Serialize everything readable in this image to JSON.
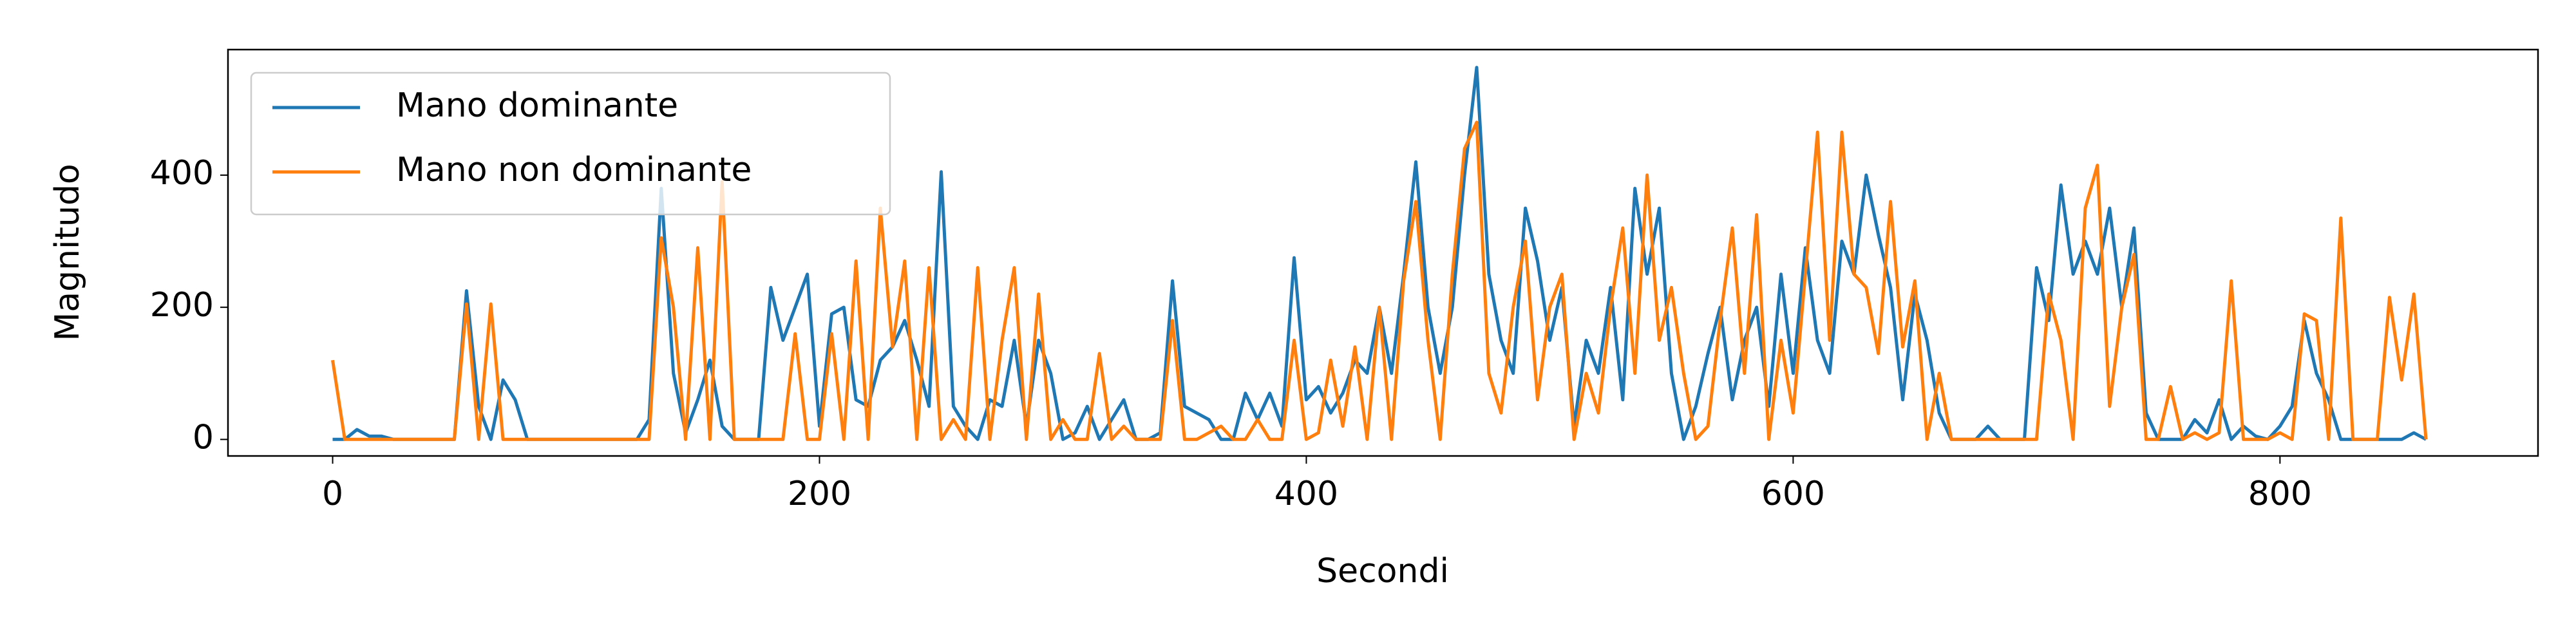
{
  "chart_data": {
    "type": "line",
    "xlabel": "Secondi",
    "ylabel": "Magnitudo",
    "x": [
      0,
      5,
      10,
      15,
      20,
      25,
      30,
      35,
      40,
      45,
      50,
      55,
      60,
      65,
      70,
      75,
      80,
      85,
      90,
      95,
      100,
      105,
      110,
      115,
      120,
      125,
      130,
      135,
      140,
      145,
      150,
      155,
      160,
      165,
      170,
      175,
      180,
      185,
      190,
      195,
      200,
      205,
      210,
      215,
      220,
      225,
      230,
      235,
      240,
      245,
      250,
      255,
      260,
      265,
      270,
      275,
      280,
      285,
      290,
      295,
      300,
      305,
      310,
      315,
      320,
      325,
      330,
      335,
      340,
      345,
      350,
      355,
      360,
      365,
      370,
      375,
      380,
      385,
      390,
      395,
      400,
      405,
      410,
      415,
      420,
      425,
      430,
      435,
      440,
      445,
      450,
      455,
      460,
      465,
      470,
      475,
      480,
      485,
      490,
      495,
      500,
      505,
      510,
      515,
      520,
      525,
      530,
      535,
      540,
      545,
      550,
      555,
      560,
      565,
      570,
      575,
      580,
      585,
      590,
      595,
      600,
      605,
      610,
      615,
      620,
      625,
      630,
      635,
      640,
      645,
      650,
      655,
      660,
      665,
      670,
      675,
      680,
      685,
      690,
      695,
      700,
      705,
      710,
      715,
      720,
      725,
      730,
      735,
      740,
      745,
      750,
      755,
      760,
      765,
      770,
      775,
      780,
      785,
      790,
      795,
      800,
      805,
      810,
      815,
      820,
      825,
      830,
      835,
      840,
      845,
      850,
      855,
      860
    ],
    "series": [
      {
        "name": "Mano dominante",
        "color": "#1f77b4",
        "values": [
          0,
          0,
          15,
          5,
          5,
          0,
          0,
          0,
          0,
          0,
          0,
          225,
          50,
          0,
          90,
          60,
          0,
          0,
          0,
          0,
          0,
          0,
          0,
          0,
          0,
          0,
          30,
          380,
          100,
          10,
          60,
          120,
          20,
          0,
          0,
          0,
          230,
          150,
          200,
          250,
          20,
          190,
          200,
          60,
          50,
          120,
          140,
          180,
          120,
          50,
          405,
          50,
          20,
          0,
          60,
          50,
          150,
          20,
          150,
          100,
          0,
          10,
          50,
          0,
          30,
          60,
          0,
          0,
          10,
          240,
          50,
          40,
          30,
          0,
          0,
          70,
          30,
          70,
          20,
          275,
          60,
          80,
          40,
          70,
          120,
          100,
          200,
          100,
          250,
          420,
          200,
          100,
          200,
          400,
          563,
          250,
          150,
          100,
          350,
          270,
          150,
          230,
          20,
          150,
          100,
          230,
          60,
          380,
          250,
          350,
          100,
          0,
          50,
          130,
          200,
          60,
          150,
          200,
          50,
          250,
          100,
          290,
          150,
          100,
          300,
          250,
          400,
          310,
          230,
          60,
          220,
          150,
          40,
          0,
          0,
          0,
          20,
          0,
          0,
          0,
          260,
          180,
          385,
          250,
          300,
          250,
          350,
          200,
          320,
          40,
          0,
          0,
          0,
          30,
          10,
          60,
          0,
          20,
          5,
          0,
          20,
          50,
          180,
          100,
          60,
          0,
          0,
          0,
          0,
          0,
          0,
          10,
          0
        ]
      },
      {
        "name": "Mano non dominante",
        "color": "#ff7f0e",
        "values": [
          120,
          0,
          0,
          0,
          0,
          0,
          0,
          0,
          0,
          0,
          0,
          205,
          0,
          205,
          0,
          0,
          0,
          0,
          0,
          0,
          0,
          0,
          0,
          0,
          0,
          0,
          0,
          305,
          200,
          0,
          290,
          0,
          390,
          0,
          0,
          0,
          0,
          0,
          160,
          0,
          0,
          160,
          0,
          270,
          0,
          350,
          140,
          270,
          0,
          260,
          0,
          30,
          0,
          260,
          0,
          150,
          260,
          0,
          220,
          0,
          30,
          0,
          0,
          130,
          0,
          20,
          0,
          0,
          0,
          180,
          0,
          0,
          10,
          20,
          0,
          0,
          30,
          0,
          0,
          150,
          0,
          10,
          120,
          20,
          140,
          0,
          200,
          0,
          240,
          360,
          150,
          0,
          250,
          440,
          480,
          100,
          40,
          200,
          300,
          60,
          200,
          250,
          0,
          100,
          40,
          200,
          320,
          100,
          400,
          150,
          230,
          100,
          0,
          20,
          180,
          320,
          100,
          340,
          0,
          150,
          40,
          250,
          465,
          150,
          465,
          250,
          230,
          130,
          360,
          140,
          240,
          0,
          100,
          0,
          0,
          0,
          0,
          0,
          0,
          0,
          0,
          220,
          150,
          0,
          350,
          415,
          50,
          200,
          280,
          0,
          0,
          80,
          0,
          10,
          0,
          10,
          240,
          0,
          0,
          0,
          10,
          0,
          190,
          180,
          0,
          335,
          0,
          0,
          0,
          215,
          90,
          220,
          0
        ]
      }
    ],
    "xlim": [
      -43,
      906
    ],
    "ylim": [
      -25,
      590
    ],
    "xticks": [
      0,
      200,
      400,
      600,
      800
    ],
    "yticks": [
      0,
      200,
      400
    ],
    "legend": "upper left",
    "grid": false
  }
}
